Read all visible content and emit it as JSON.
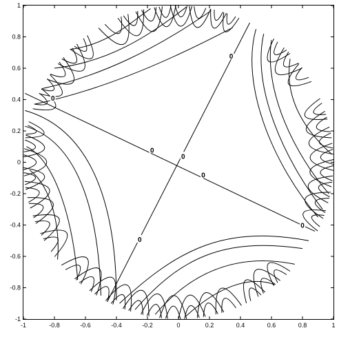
{
  "chart_data": {
    "type": "contour",
    "title": "",
    "xlabel": "",
    "ylabel": "",
    "xlim": [
      -1,
      1
    ],
    "ylim": [
      -1,
      1
    ],
    "grid": false,
    "x_ticks": [
      -1,
      -0.8,
      -0.6,
      -0.4,
      -0.2,
      0,
      0.2,
      0.4,
      0.6,
      0.8,
      1
    ],
    "x_tick_labels": [
      "-1",
      "-0.8",
      "-0.6",
      "-0.4",
      "-0.2",
      "0",
      "0.2",
      "0.4",
      "0.6",
      "0.8",
      "1"
    ],
    "y_ticks": [
      1,
      0.8,
      0.6,
      0.4,
      0.2,
      0,
      -0.2,
      -0.4,
      -0.6,
      -0.8,
      -1
    ],
    "y_tick_labels": [
      "1",
      "0.8",
      "0.6",
      "0.4",
      "0.2",
      "0",
      "-0.2",
      "-0.4",
      "-0.6",
      "-0.8",
      "-1"
    ],
    "domain": {
      "shape": "unit disk",
      "center": [
        0,
        0
      ],
      "radius": 1
    },
    "boundary_points": [
      {
        "name": "upper-right",
        "x": 0.46,
        "y": 0.89
      },
      {
        "name": "left",
        "x": -0.99,
        "y": 0.44
      },
      {
        "name": "bottom",
        "x": -0.46,
        "y": -0.89
      },
      {
        "name": "right",
        "x": 0.88,
        "y": -0.44
      }
    ],
    "zero_lines": [
      {
        "from": "left",
        "to": "right"
      },
      {
        "from": "bottom",
        "to": "upper-right"
      }
    ],
    "contour_labels": [
      {
        "text": "0",
        "x": 0.34,
        "y": 0.68
      },
      {
        "text": "0",
        "x": -0.81,
        "y": 0.41
      },
      {
        "text": "0",
        "x": -0.17,
        "y": 0.08
      },
      {
        "text": "0",
        "x": 0.03,
        "y": 0.04
      },
      {
        "text": "0",
        "x": 0.16,
        "y": -0.08
      },
      {
        "text": "0",
        "x": -0.25,
        "y": -0.49
      },
      {
        "text": "0",
        "x": 0.8,
        "y": -0.4
      }
    ],
    "line_color": "#000000"
  }
}
